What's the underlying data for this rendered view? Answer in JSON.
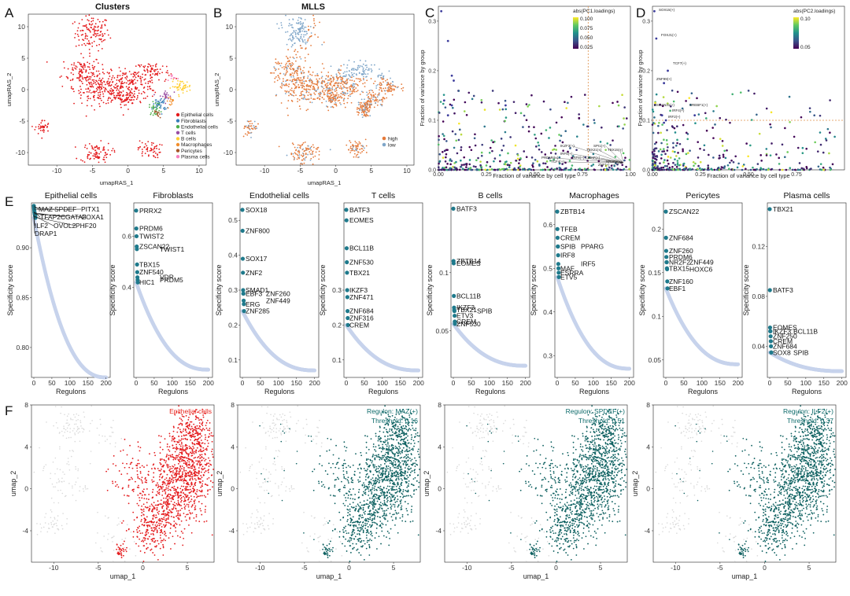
{
  "colors": {
    "epithelial": "#e41a1c",
    "fibroblasts": "#377eb8",
    "endothelial": "#4daf4a",
    "tcells": "#984ea3",
    "bcells": "#ffcf33",
    "macrophages": "#f28e2b",
    "pericytes": "#a65628",
    "plasma": "#f781bf",
    "high": "#e57a3a",
    "low": "#7fa6c9",
    "rank": "#c7d3ec",
    "top": "#1f7a8c",
    "teal": "#0d6060",
    "grey": "#d3d3d3"
  },
  "panels": {
    "A": {
      "letter": "A",
      "title": "Clusters",
      "xlabel": "umapRAS_1",
      "ylabel": "umapRAS_2",
      "xticks": [
        "-10",
        "-5",
        "0",
        "5",
        "10"
      ],
      "yticks": [
        "-10",
        "-5",
        "0",
        "5",
        "10"
      ],
      "legend": [
        {
          "label": "Epithelial cells",
          "color": "#e41a1c"
        },
        {
          "label": "Fibroblasts",
          "color": "#377eb8"
        },
        {
          "label": "Endothelial cells",
          "color": "#4daf4a"
        },
        {
          "label": "T cells",
          "color": "#984ea3"
        },
        {
          "label": "B cells",
          "color": "#ffcf33"
        },
        {
          "label": "Macrophages",
          "color": "#f28e2b"
        },
        {
          "label": "Pericytes",
          "color": "#a65628"
        },
        {
          "label": "Plasma cells",
          "color": "#f781bf"
        }
      ]
    },
    "B": {
      "letter": "B",
      "title": "MLLS",
      "xlabel": "umapRAS_1",
      "ylabel": "umapRAS_2",
      "xticks": [
        "-10",
        "-5",
        "0",
        "5",
        "10"
      ],
      "yticks": [
        "-10",
        "-5",
        "0",
        "5",
        "10"
      ],
      "legend": [
        {
          "label": "high",
          "color": "#e57a3a"
        },
        {
          "label": "low",
          "color": "#7fa6c9"
        }
      ]
    },
    "C": {
      "letter": "C",
      "xlabel": "Fraction of variance by cell type",
      "ylabel": "Fraction of variance by group",
      "xticks": [
        "0.00",
        "0.25",
        "0.50",
        "0.75",
        "1.00"
      ],
      "yticks": [
        "0.0",
        "0.1",
        "0.2",
        "0.3"
      ],
      "colorbar_title": "abs(PC1.loadings)",
      "colorbar_ticks": [
        "0.100",
        "0.075",
        "0.050",
        "0.025"
      ],
      "labels": [
        "IKZF3(+)",
        "SPI1(+)",
        "TBX21(+)",
        "TBX15(+)",
        "IRF5(+)",
        "PRDM6(+)",
        "IRF8(+)",
        "MAF(+)",
        "NR2F2(+)",
        "TCF4(+)",
        "ZNF(+)"
      ]
    },
    "D": {
      "letter": "D",
      "xlabel": "Fraction of variance by cell type",
      "ylabel": "Fraction of variance by group",
      "xticks": [
        "0.00",
        "0.25",
        "0.50",
        "0.75"
      ],
      "yticks": [
        "0.0",
        "0.1",
        "0.2",
        "0.3"
      ],
      "colorbar_title": "abs(PC2.loadings)",
      "colorbar_ticks": [
        "0.10",
        "0.05"
      ],
      "labels": [
        "SOX15(+)",
        "FOXJ1(+)",
        "TCF7(+)",
        "ZNF99(+)",
        "ZSCAN31(+)",
        "SREBF1(+)",
        "IRF4(+)",
        "IRF2(+)"
      ]
    },
    "E": {
      "letter": "E",
      "xlabel": "Regulons",
      "ylabel": "Specificity score",
      "xticks": [
        "0",
        "50",
        "100",
        "150",
        "200"
      ]
    },
    "F": {
      "letter": "F",
      "xlabel": "umap_1",
      "ylabel": "umap_2",
      "xticks": [
        "-10",
        "-5",
        "0",
        "5"
      ],
      "yticks": [
        "-4",
        "0",
        "4",
        "8"
      ],
      "panels": [
        {
          "line1": "Epithelial cells",
          "line2": ""
        },
        {
          "line1": "Regulon: MAZ(+)",
          "line2": "Threshold: 0.16"
        },
        {
          "line1": "Regulon: SPDEF(+)",
          "line2": "Threshold: 0.51"
        },
        {
          "line1": "Regulon: ILF2(+)",
          "line2": "Threshold: 0.37"
        }
      ]
    }
  },
  "chart_data": [
    {
      "type": "scatter",
      "title": "Clusters",
      "xlabel": "umapRAS_1",
      "ylabel": "umapRAS_2",
      "xlim": [
        -14,
        11
      ],
      "ylim": [
        -12,
        12
      ]
    },
    {
      "type": "scatter",
      "title": "MLLS",
      "xlabel": "umapRAS_1",
      "ylabel": "umapRAS_2",
      "xlim": [
        -14,
        11
      ],
      "ylim": [
        -12,
        12
      ]
    },
    {
      "type": "scatter",
      "xlabel": "Fraction of variance by cell type",
      "ylabel": "Fraction of variance by group",
      "xlim": [
        0,
        1
      ],
      "ylim": [
        0,
        0.33
      ],
      "vline": 0.78
    },
    {
      "type": "scatter",
      "xlabel": "Fraction of variance by cell type",
      "ylabel": "Fraction of variance by group",
      "xlim": [
        0,
        1
      ],
      "ylim": [
        0,
        0.33
      ],
      "hline": 0.1
    },
    {
      "type": "scatter",
      "title": "Epithelial cells",
      "xlabel": "Regulons",
      "ylabel": "Specificity score",
      "ylim": [
        0.77,
        0.945
      ],
      "yticks": [
        0.8,
        0.85,
        0.9
      ],
      "ymin_curve": 0.77,
      "top": [
        {
          "label": "MAZ",
          "y": 0.942
        },
        {
          "label": "SPDEF",
          "y": 0.94
        },
        {
          "label": "PITX1",
          "y": 0.938
        },
        {
          "label": "TFAP2C",
          "y": 0.936
        },
        {
          "label": "GATA3",
          "y": 0.935
        },
        {
          "label": "FOXA1",
          "y": 0.934
        },
        {
          "label": "ILF2",
          "y": 0.933
        },
        {
          "label": "OVOL2",
          "y": 0.932
        },
        {
          "label": "PHF20",
          "y": 0.931
        },
        {
          "label": "DRAP1",
          "y": 0.93
        }
      ]
    },
    {
      "type": "scatter",
      "title": "Fibroblasts",
      "xlabel": "Regulons",
      "ylabel": "Specificity score",
      "ylim": [
        0.05,
        0.73
      ],
      "yticks": [
        0.4,
        0.6
      ],
      "ymin_curve": 0.08,
      "top": [
        {
          "label": "PRRX2",
          "y": 0.7
        },
        {
          "label": "PRDM6",
          "y": 0.63
        },
        {
          "label": "TWIST2",
          "y": 0.6
        },
        {
          "label": "ZSCAN22",
          "y": 0.56
        },
        {
          "label": "TWIST1",
          "y": 0.55
        },
        {
          "label": "TBX15",
          "y": 0.49
        },
        {
          "label": "ZNF540",
          "y": 0.46
        },
        {
          "label": "VDR",
          "y": 0.44
        },
        {
          "label": "PRDM5",
          "y": 0.43
        },
        {
          "label": "HIC1",
          "y": 0.42
        }
      ]
    },
    {
      "type": "scatter",
      "title": "Endothelial cells",
      "xlabel": "Regulons",
      "ylabel": "Specificity score",
      "ylim": [
        0.05,
        0.55
      ],
      "yticks": [
        0.1,
        0.2,
        0.3,
        0.4,
        0.5
      ],
      "ymin_curve": 0.07,
      "top": [
        {
          "label": "SOX18",
          "y": 0.53
        },
        {
          "label": "ZNF800",
          "y": 0.47
        },
        {
          "label": "SOX17",
          "y": 0.39
        },
        {
          "label": "ZNF2",
          "y": 0.35
        },
        {
          "label": "SMAD1",
          "y": 0.3
        },
        {
          "label": "EBF3",
          "y": 0.29
        },
        {
          "label": "ZNF260",
          "y": 0.29
        },
        {
          "label": "ZNF449",
          "y": 0.27
        },
        {
          "label": "ERG",
          "y": 0.26
        },
        {
          "label": "ZNF285",
          "y": 0.24
        }
      ]
    },
    {
      "type": "scatter",
      "title": "T cells",
      "xlabel": "Regulons",
      "ylabel": "Specificity score",
      "ylim": [
        0.05,
        0.55
      ],
      "yticks": [
        0.1,
        0.2,
        0.3
      ],
      "ymin_curve": 0.07,
      "top": [
        {
          "label": "BATF3",
          "y": 0.53
        },
        {
          "label": "EOMES",
          "y": 0.5
        },
        {
          "label": "BCL11B",
          "y": 0.42
        },
        {
          "label": "ZNF530",
          "y": 0.38
        },
        {
          "label": "TBX21",
          "y": 0.35
        },
        {
          "label": "IKZF3",
          "y": 0.3
        },
        {
          "label": "ZNF471",
          "y": 0.28
        },
        {
          "label": "ZNF684",
          "y": 0.24
        },
        {
          "label": "ZNF316",
          "y": 0.22
        },
        {
          "label": "CREM",
          "y": 0.2
        }
      ]
    },
    {
      "type": "scatter",
      "title": "B cells",
      "xlabel": "Regulons",
      "ylabel": "Specificity score",
      "ylim": [
        0.01,
        0.16
      ],
      "yticks": [
        0.05,
        0.1
      ],
      "ymin_curve": 0.02,
      "top": [
        {
          "label": "BATF3",
          "y": 0.155
        },
        {
          "label": "ZBTB14",
          "y": 0.11
        },
        {
          "label": "EOMES",
          "y": 0.108
        },
        {
          "label": "BCL11B",
          "y": 0.08
        },
        {
          "label": "IKZF3",
          "y": 0.07
        },
        {
          "label": "TBX21",
          "y": 0.068
        },
        {
          "label": "SPIB",
          "y": 0.067
        },
        {
          "label": "ETV3",
          "y": 0.063
        },
        {
          "label": "CREM",
          "y": 0.058
        },
        {
          "label": "ZNF530",
          "y": 0.056
        }
      ]
    },
    {
      "type": "scatter",
      "title": "Macrophages",
      "xlabel": "Regulons",
      "ylabel": "Specificity score",
      "ylim": [
        0.25,
        0.65
      ],
      "yticks": [
        0.3,
        0.4,
        0.5,
        0.6
      ],
      "ymin_curve": 0.27,
      "top": [
        {
          "label": "ZBTB14",
          "y": 0.63
        },
        {
          "label": "TFEB",
          "y": 0.59
        },
        {
          "label": "CREM",
          "y": 0.57
        },
        {
          "label": "SPIB",
          "y": 0.55
        },
        {
          "label": "PPARG",
          "y": 0.55
        },
        {
          "label": "IRF8",
          "y": 0.53
        },
        {
          "label": "IRF5",
          "y": 0.51
        },
        {
          "label": "MAF",
          "y": 0.5
        },
        {
          "label": "ESRRA",
          "y": 0.49
        },
        {
          "label": "ETV5",
          "y": 0.48
        }
      ]
    },
    {
      "type": "scatter",
      "title": "Pericytes",
      "xlabel": "Regulons",
      "ylabel": "Specificity score",
      "ylim": [
        0.03,
        0.23
      ],
      "yticks": [
        0.05,
        0.1,
        0.15,
        0.2
      ],
      "ymin_curve": 0.045,
      "top": [
        {
          "label": "ZSCAN22",
          "y": 0.22
        },
        {
          "label": "ZNF684",
          "y": 0.19
        },
        {
          "label": "ZNF260",
          "y": 0.175
        },
        {
          "label": "PRDM6",
          "y": 0.168
        },
        {
          "label": "NR2F2",
          "y": 0.162
        },
        {
          "label": "ZNF449",
          "y": 0.162
        },
        {
          "label": "TBX15",
          "y": 0.155
        },
        {
          "label": "HOXC6",
          "y": 0.154
        },
        {
          "label": "ZNF160",
          "y": 0.14
        },
        {
          "label": "EBF1",
          "y": 0.132
        }
      ]
    },
    {
      "type": "scatter",
      "title": "Plasma cells",
      "xlabel": "Regulons",
      "ylabel": "Specificity score",
      "ylim": [
        0.015,
        0.155
      ],
      "yticks": [
        0.04,
        0.08,
        0.12
      ],
      "ymin_curve": 0.02,
      "top": [
        {
          "label": "TBX21",
          "y": 0.15
        },
        {
          "label": "BATF3",
          "y": 0.085
        },
        {
          "label": "EOMES",
          "y": 0.055
        },
        {
          "label": "IKZF3",
          "y": 0.052
        },
        {
          "label": "BCL11B",
          "y": 0.052
        },
        {
          "label": "ZNF250",
          "y": 0.048
        },
        {
          "label": "CREM",
          "y": 0.044
        },
        {
          "label": "ZNF684",
          "y": 0.04
        },
        {
          "label": "SOX8",
          "y": 0.035
        },
        {
          "label": "SPIB",
          "y": 0.035
        }
      ]
    },
    {
      "type": "scatter",
      "title": "Epithelial cells",
      "xlabel": "umap_1",
      "ylabel": "umap_2",
      "xlim": [
        -12.5,
        8
      ],
      "ylim": [
        -7,
        8
      ]
    },
    {
      "type": "scatter",
      "title": "Regulon: MAZ(+)",
      "xlabel": "umap_1",
      "ylabel": "umap_2",
      "threshold": 0.16,
      "xlim": [
        -12.5,
        8
      ],
      "ylim": [
        -7,
        8
      ]
    },
    {
      "type": "scatter",
      "title": "Regulon: SPDEF(+)",
      "xlabel": "umap_1",
      "ylabel": "umap_2",
      "threshold": 0.51,
      "xlim": [
        -12.5,
        8
      ],
      "ylim": [
        -7,
        8
      ]
    },
    {
      "type": "scatter",
      "title": "Regulon: ILF2(+)",
      "xlabel": "umap_1",
      "ylabel": "umap_2",
      "threshold": 0.37,
      "xlim": [
        -12.5,
        8
      ],
      "ylim": [
        -7,
        8
      ]
    }
  ]
}
